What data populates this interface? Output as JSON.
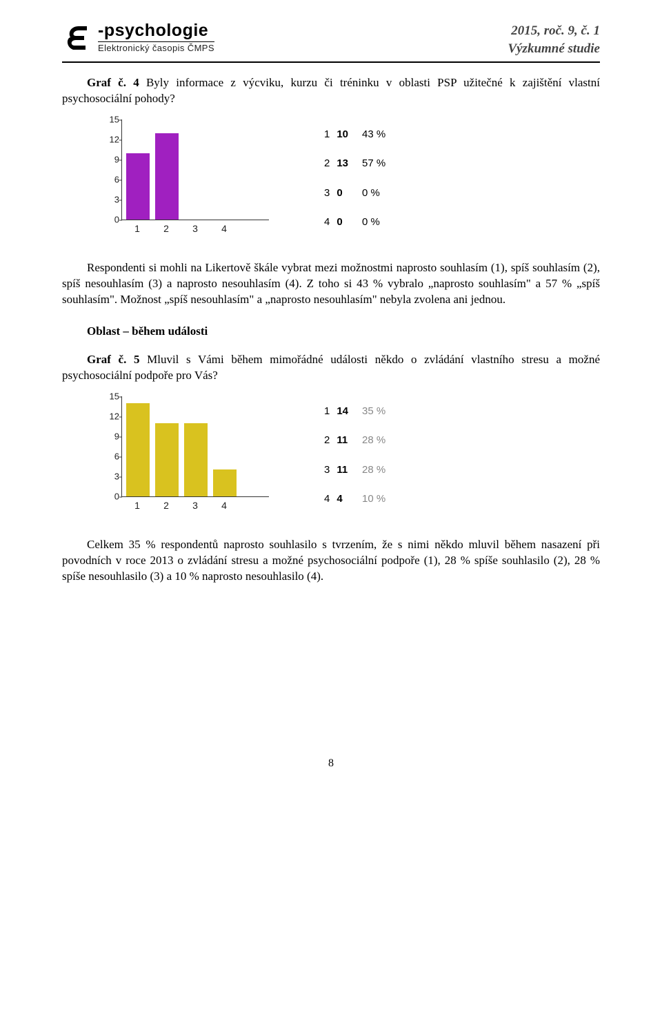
{
  "header": {
    "logo_title": "-psychologie",
    "logo_sub": "Elektronický časopis ČMPS",
    "line1": "2015, roč. 9, č. 1",
    "line2": "Výzkumné studie"
  },
  "para1_prefix": "Graf č. 4",
  "para1_rest": " Byly informace z výcviku, kurzu či tréninku v oblasti PSP užitečné k zajištění vlastní psychosociální pohody?",
  "chart1": {
    "type": "bar",
    "categories": [
      "1",
      "2",
      "3",
      "4"
    ],
    "values": [
      10,
      13,
      0,
      0
    ],
    "percents": [
      "43 %",
      "57 %",
      "0 %",
      "0 %"
    ],
    "bar_color": "#a020c0",
    "ylim_max": 15,
    "ytick_step": 3,
    "yticks": [
      0,
      3,
      6,
      9,
      12,
      15
    ]
  },
  "para2": "Respondenti si mohli na Likertově škále vybrat mezi možnostmi naprosto souhlasím (1), spíš souhlasím (2), spíš nesouhlasím (3) a naprosto nesouhlasím (4). Z toho si 43 % vybralo „naprosto souhlasím\" a 57 % „spíš souhlasím\". Možnost „spíš nesouhlasím\" a „naprosto nesouhlasím\" nebyla zvolena ani jednou.",
  "section_heading": "Oblast – během události",
  "para3_prefix": "Graf č. 5",
  "para3_rest": " Mluvil s Vámi během mimořádné události někdo o zvládání vlastního stresu a možné psychosociální podpoře pro Vás?",
  "chart2": {
    "type": "bar",
    "categories": [
      "1",
      "2",
      "3",
      "4"
    ],
    "values": [
      14,
      11,
      11,
      4
    ],
    "percents": [
      "35 %",
      "28 %",
      "28 %",
      "10 %"
    ],
    "bar_color": "#d9c21f",
    "ylim_max": 15,
    "ytick_step": 3,
    "yticks": [
      0,
      3,
      6,
      9,
      12,
      15
    ]
  },
  "para4": "Celkem 35 % respondentů naprosto souhlasilo s tvrzením, že s nimi někdo mluvil během nasazení při povodních v roce 2013 o zvládání stresu a možné psychosociální podpoře (1), 28 % spíše souhlasilo (2), 28 % spíše nesouhlasilo (3) a 10 % naprosto nesouhlasilo (4).",
  "page_number": "8",
  "style": {
    "tick_font_size": 13,
    "axis_color": "#333",
    "background": "#ffffff"
  }
}
